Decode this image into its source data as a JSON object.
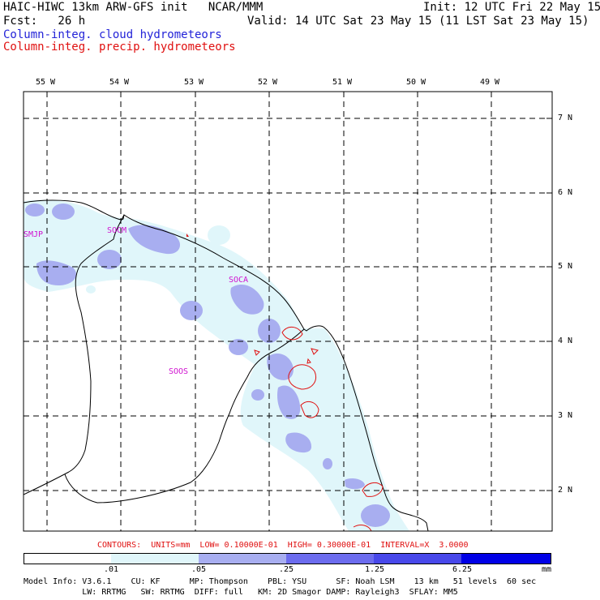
{
  "header": {
    "title_left": "HAIC-HIWC 13km ARW-GFS init   NCAR/MMM",
    "init": "Init: 12 UTC Fri 22 May 15",
    "fcst_label": "Fcst:   26 h",
    "valid": "Valid: 14 UTC Sat 23 May 15 (11 LST Sat 23 May 15)",
    "field_cloud": "Column-integ. cloud hydrometeors",
    "field_precip": "Column-integ. precip. hydrometeors"
  },
  "colors": {
    "cloud_text": "#2323d8",
    "precip_text": "#e01010",
    "shade_1": "#e0f6fa",
    "shade_2": "#a8aef0",
    "shade_3": "#6c6cee",
    "shade_4": "#0000e6",
    "station_label": "#d010d0",
    "precip_contour": "#e01010"
  },
  "map": {
    "longitude_labels": [
      "55 W",
      "54 W",
      "53 W",
      "52 W",
      "51 W",
      "50 W",
      "49 W"
    ],
    "latitude_labels": [
      "7 N",
      "6 N",
      "5 N",
      "4 N",
      "3 N",
      "2 N"
    ],
    "stations": [
      "SMJP",
      "SOCM",
      "SOCA",
      "SOOS"
    ]
  },
  "contours_line": "CONTOURS:  UNITS=mm  LOW= 0.10000E-01  HIGH= 0.30000E-01  INTERVAL=X  3.0000",
  "colorbar": {
    "labels": [
      ".01",
      ".05",
      ".25",
      "1.25",
      "6.25"
    ],
    "units": "mm"
  },
  "model_info": {
    "line1": "Model Info: V3.6.1    CU: KF      MP: Thompson    PBL: YSU      SF: Noah LSM    13 km   51 levels  60 sec",
    "line2": "            LW: RRTMG   SW: RRTMG  DIFF: full   KM: 2D Smagor DAMP: Rayleigh3  SFLAY: MM5"
  }
}
